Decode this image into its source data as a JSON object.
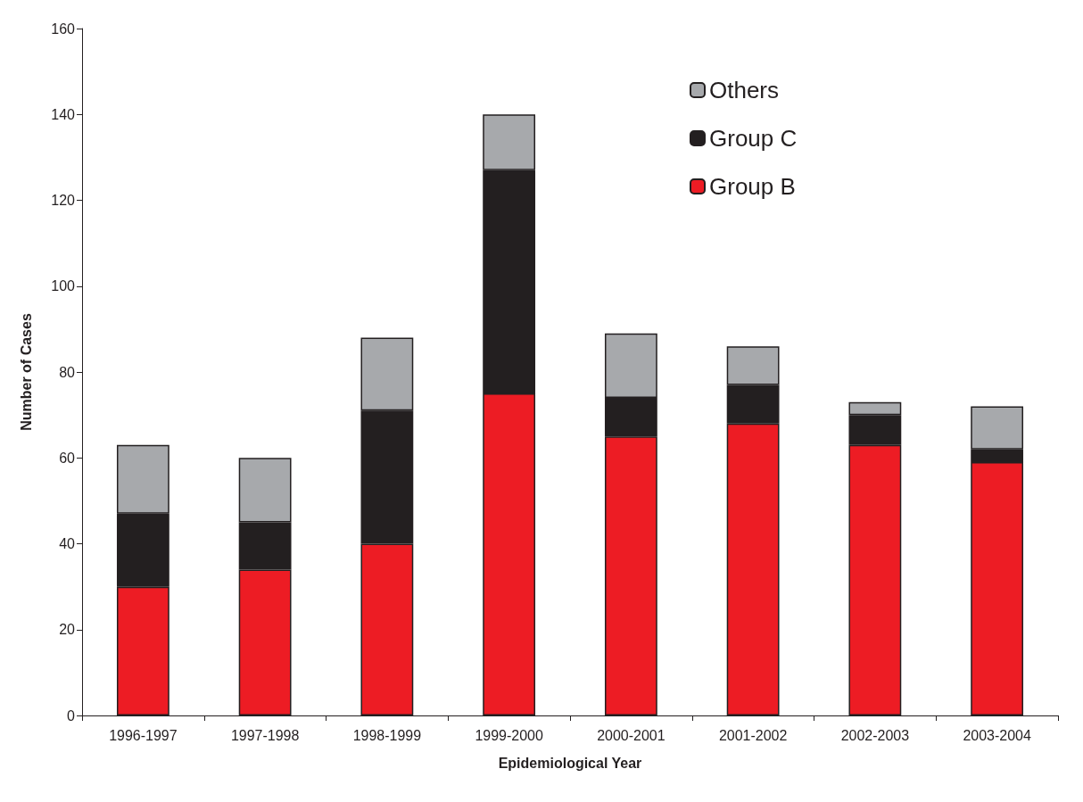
{
  "chart_data": {
    "type": "bar",
    "stacked": true,
    "xlabel": "Epidemiological Year",
    "ylabel": "Number of Cases",
    "categories": [
      "1996-1997",
      "1997-1998",
      "1998-1999",
      "1999-2000",
      "2000-2001",
      "2001-2002",
      "2002-2003",
      "2003-2004"
    ],
    "series": [
      {
        "name": "Group B",
        "color": "#ed1c24",
        "values": [
          30,
          34,
          40,
          75,
          65,
          68,
          63,
          59
        ]
      },
      {
        "name": "Group C",
        "color": "#231f20",
        "values": [
          17,
          11,
          31,
          52,
          9,
          9,
          7,
          3
        ]
      },
      {
        "name": "Others",
        "color": "#a7a9ac",
        "values": [
          16,
          15,
          17,
          13,
          15,
          9,
          3,
          10
        ]
      }
    ],
    "ylim": [
      0,
      160
    ],
    "yticks": [
      0,
      20,
      40,
      60,
      80,
      100,
      120,
      140,
      160
    ],
    "grid": false,
    "legend": "top right"
  }
}
